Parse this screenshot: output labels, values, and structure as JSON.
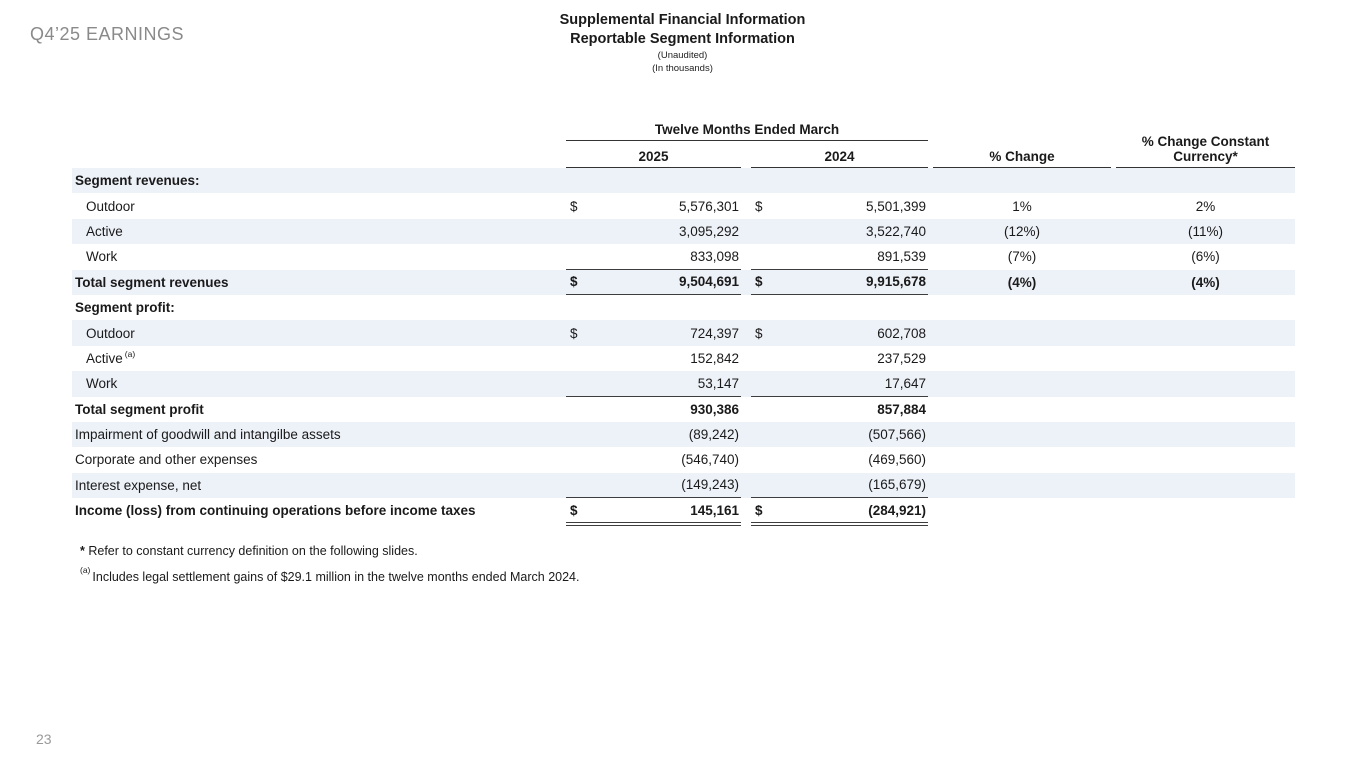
{
  "slide": {
    "eyebrow": "Q4’25 EARNINGS",
    "title_line1": "Supplemental Financial Information",
    "title_line2": "Reportable Segment Information",
    "subtitle1": "(Unaudited)",
    "subtitle2": "(In thousands)",
    "page_number": "23"
  },
  "colors": {
    "stripe": "#edf1f8",
    "text": "#1a1a1a",
    "muted": "#8a8a8a",
    "rule": "#333333"
  },
  "table": {
    "group_header": "Twelve Months Ended March",
    "col_2025": "2025",
    "col_2024": "2024",
    "col_change": "% Change",
    "col_change_cc": "% Change Constant Currency*",
    "currency_symbol": "$",
    "rows": [
      {
        "label": "Segment revenues:",
        "style": "section"
      },
      {
        "label": "Outdoor",
        "style": "item",
        "dollar": true,
        "y2025": "5,576,301",
        "y2024": "5,501,399",
        "chg": "1%",
        "chgcc": "2%"
      },
      {
        "label": "Active",
        "style": "item",
        "y2025": "3,095,292",
        "y2024": "3,522,740",
        "chg": "(12%)",
        "chgcc": "(11%)"
      },
      {
        "label": "Work",
        "style": "item",
        "y2025": "833,098",
        "y2024": "891,539",
        "chg": "(7%)",
        "chgcc": "(6%)",
        "rule_below": true
      },
      {
        "label": "Total segment revenues",
        "style": "total",
        "dollar": true,
        "y2025": "9,504,691",
        "y2024": "9,915,678",
        "chg": "(4%)",
        "chgcc": "(4%)",
        "rule_below": true
      },
      {
        "label": "Segment profit:",
        "style": "section"
      },
      {
        "label": "Outdoor",
        "style": "item",
        "dollar": true,
        "y2025": "724,397",
        "y2024": "602,708"
      },
      {
        "label": "Active",
        "sup": "(a)",
        "style": "item",
        "y2025": "152,842",
        "y2024": "237,529"
      },
      {
        "label": "Work",
        "style": "item",
        "y2025": "53,147",
        "y2024": "17,647",
        "rule_below": true
      },
      {
        "label": "Total segment profit",
        "style": "total",
        "y2025": "930,386",
        "y2024": "857,884"
      },
      {
        "label": "Impairment of goodwill and intangilbe assets",
        "style": "flush",
        "y2025": "(89,242)",
        "y2024": "(507,566)"
      },
      {
        "label": "Corporate and other expenses",
        "style": "flush",
        "y2025": "(546,740)",
        "y2024": "(469,560)"
      },
      {
        "label": "Interest expense, net",
        "style": "flush",
        "y2025": "(149,243)",
        "y2024": "(165,679)",
        "rule_below": true
      },
      {
        "label": "Income (loss) from continuing operations before income taxes",
        "style": "total",
        "dollar": true,
        "y2025": "145,161",
        "y2024": "(284,921)",
        "double_below": true
      }
    ]
  },
  "footnotes": [
    {
      "mark": "*",
      "text": "Refer to constant currency definition on the following slides."
    },
    {
      "mark": "(a)",
      "text": "Includes legal settlement gains of $29.1 million in the twelve months ended March 2024."
    }
  ]
}
